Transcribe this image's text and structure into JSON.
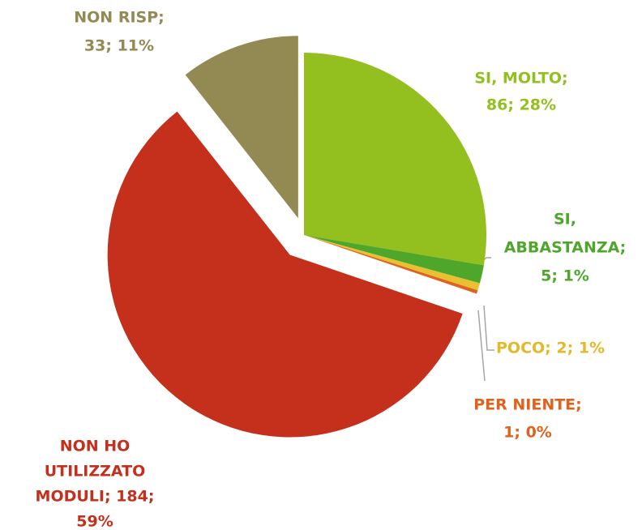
{
  "chart_data": {
    "type": "pie",
    "values": [
      86,
      5,
      2,
      1,
      184,
      33
    ],
    "value_labels": [
      [
        "SI, MOLTO;",
        "86; 28%"
      ],
      [
        "SI,",
        "ABBASTANZA;",
        "5; 1%"
      ],
      [
        "POCO; 2; 1%"
      ],
      [
        "PER NIENTE;",
        "1; 0%"
      ],
      [
        "NON HO",
        "UTILIZZATO",
        "MODULI; 184;",
        "59%"
      ],
      [
        "NON RISP;",
        "33; 11%"
      ]
    ],
    "colors": [
      "#93c01f",
      "#4ea72a",
      "#e8c031",
      "#e0621d",
      "#c4301c",
      "#938953"
    ],
    "label_colors": [
      "#93c01f",
      "#4ea72a",
      "#e3b92a",
      "#e0621d",
      "#c4301c",
      "#938953"
    ]
  }
}
